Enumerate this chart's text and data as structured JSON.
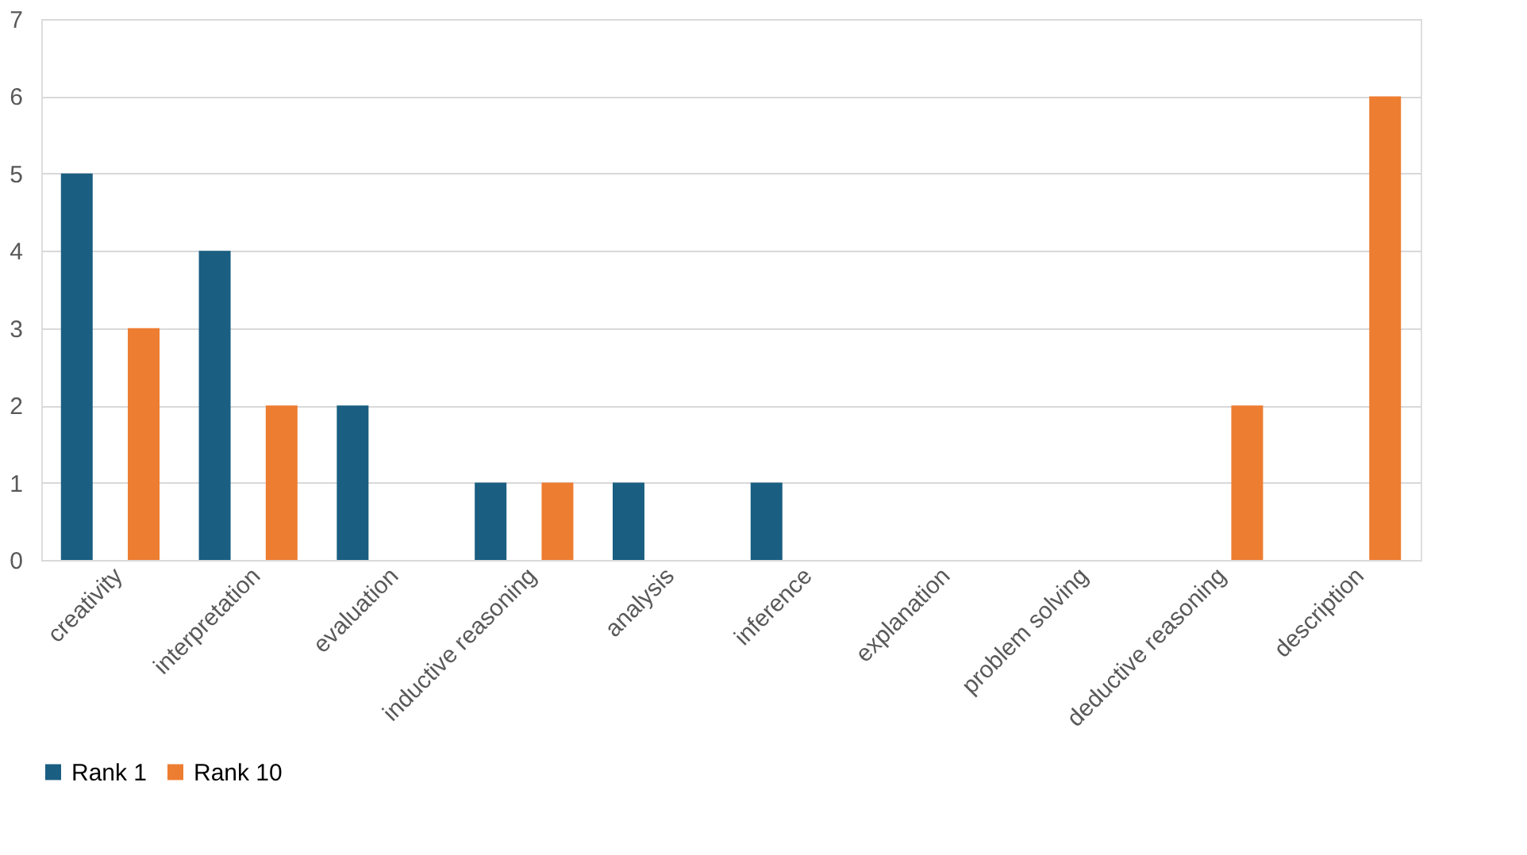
{
  "chart_data": {
    "type": "bar",
    "categories": [
      "creativity",
      "interpretation",
      "evaluation",
      "inductive reasoning",
      "analysis",
      "inference",
      "explanation",
      "problem solving",
      "deductive reasoning",
      "description"
    ],
    "series": [
      {
        "name": "Rank 1",
        "color": "#1a5e82",
        "values": [
          5,
          4,
          2,
          1,
          1,
          1,
          0,
          0,
          0,
          0
        ]
      },
      {
        "name": "Rank 10",
        "color": "#ed7d31",
        "values": [
          3,
          2,
          0,
          1,
          0,
          0,
          0,
          0,
          2,
          6
        ]
      }
    ],
    "ylim": [
      0,
      7
    ],
    "yticks": [
      0,
      1,
      2,
      3,
      4,
      5,
      6,
      7
    ],
    "grid": "y",
    "legend": "bottom"
  }
}
